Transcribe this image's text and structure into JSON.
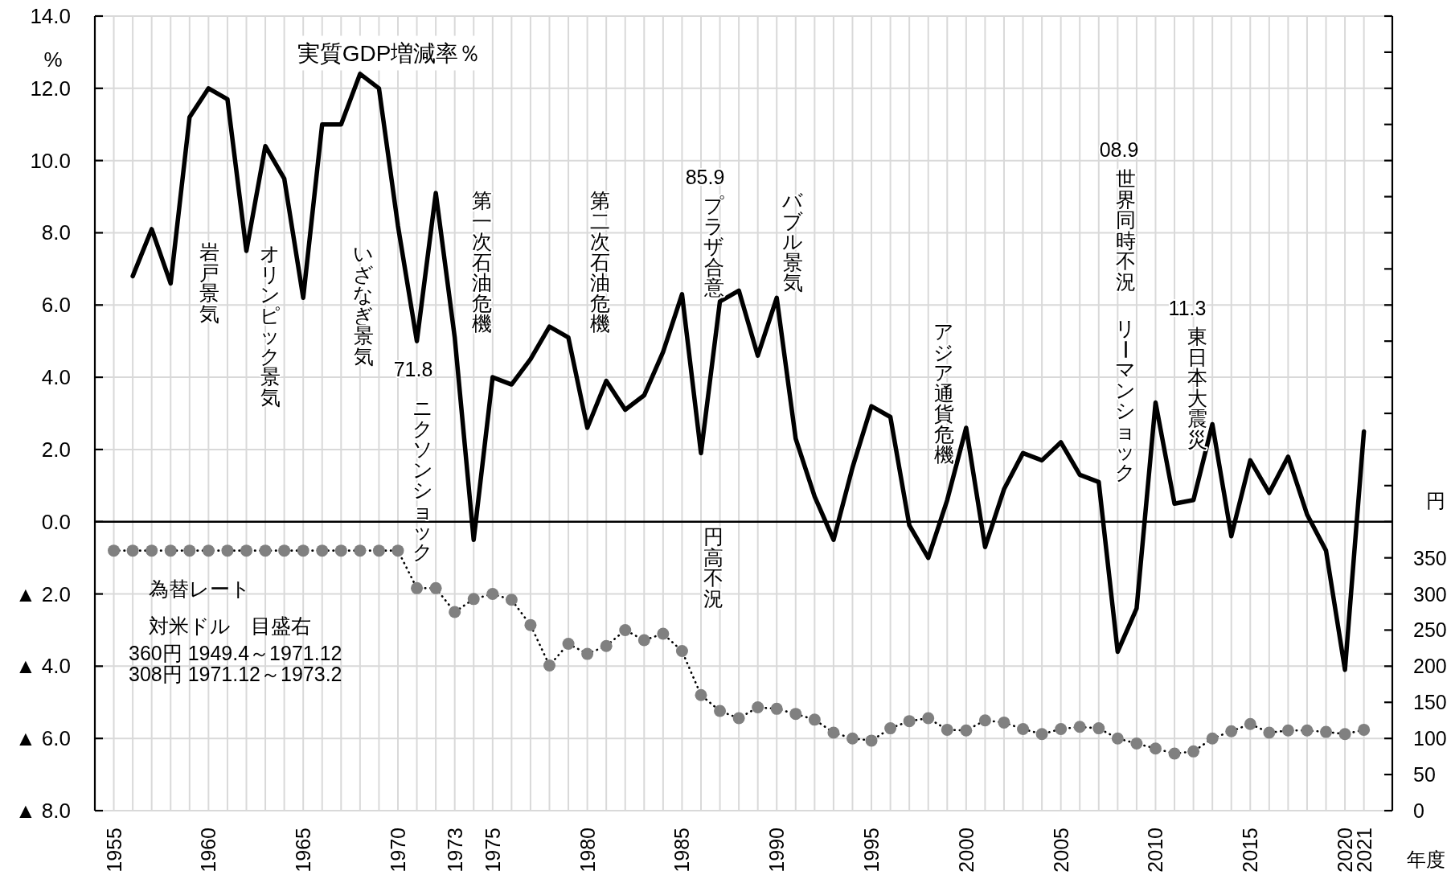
{
  "chart_data": {
    "type": "line",
    "title": "実質GDP増減率％",
    "xlabel": "年度",
    "ylabel": "%",
    "y2label": "円",
    "x": [
      1955,
      1956,
      1957,
      1958,
      1959,
      1960,
      1961,
      1962,
      1963,
      1964,
      1965,
      1966,
      1967,
      1968,
      1969,
      1970,
      1971,
      1972,
      1973,
      1974,
      1975,
      1976,
      1977,
      1978,
      1979,
      1980,
      1981,
      1982,
      1983,
      1984,
      1985,
      1986,
      1987,
      1988,
      1989,
      1990,
      1991,
      1992,
      1993,
      1994,
      1995,
      1996,
      1997,
      1998,
      1999,
      2000,
      2001,
      2002,
      2003,
      2004,
      2005,
      2006,
      2007,
      2008,
      2009,
      2010,
      2011,
      2012,
      2013,
      2014,
      2015,
      2016,
      2017,
      2018,
      2019,
      2020,
      2021
    ],
    "series": [
      {
        "color": "#000000",
        "line_style": "solid",
        "marker": "none",
        "values": [
          null,
          6.8,
          8.1,
          6.6,
          11.2,
          12.0,
          11.7,
          7.5,
          10.4,
          9.5,
          6.2,
          11.0,
          11.0,
          12.4,
          12.0,
          8.2,
          5.0,
          9.1,
          5.1,
          -0.5,
          4.0,
          3.8,
          4.5,
          5.4,
          5.1,
          2.6,
          3.9,
          3.1,
          3.5,
          4.7,
          6.3,
          1.9,
          6.1,
          6.4,
          4.6,
          6.2,
          2.3,
          0.7,
          -0.5,
          1.5,
          3.2,
          2.9,
          -0.1,
          -1.0,
          0.6,
          2.6,
          -0.7,
          0.9,
          1.9,
          1.7,
          2.2,
          1.3,
          1.1,
          -3.6,
          -2.4,
          3.3,
          0.5,
          0.6,
          2.7,
          -0.4,
          1.7,
          0.8,
          1.8,
          0.2,
          -0.8,
          -4.1,
          2.5
        ]
      },
      {
        "axis": "y2",
        "color": "#808080",
        "line_style": "dotted",
        "marker": "circle",
        "values": [
          360,
          360,
          360,
          360,
          360,
          360,
          360,
          360,
          360,
          360,
          360,
          360,
          360,
          360,
          360,
          360,
          308,
          308,
          275,
          293,
          300,
          292,
          257,
          201,
          231,
          217,
          228,
          250,
          236,
          245,
          221,
          160,
          138,
          128,
          143,
          141,
          134,
          126,
          108,
          100,
          97,
          114,
          124,
          128,
          112,
          111,
          125,
          122,
          113,
          106,
          113,
          116,
          114,
          100,
          93,
          86,
          79,
          82,
          100,
          110,
          120,
          108,
          111,
          111,
          109,
          106,
          112
        ]
      }
    ],
    "xlim": [
      1954,
      2022.5
    ],
    "xticks": [
      1955,
      {
        "value": 1956,
        "label": null
      },
      {
        "value": 1957,
        "label": null
      },
      {
        "value": 1958,
        "label": null
      },
      {
        "value": 1959,
        "label": null
      },
      1960,
      {
        "value": 1961,
        "label": null
      },
      {
        "value": 1962,
        "label": null
      },
      {
        "value": 1963,
        "label": null
      },
      {
        "value": 1964,
        "label": null
      },
      1965,
      {
        "value": 1966,
        "label": null
      },
      {
        "value": 1967,
        "label": null
      },
      {
        "value": 1968,
        "label": null
      },
      {
        "value": 1969,
        "label": null
      },
      1970,
      {
        "value": 1971,
        "label": null
      },
      {
        "value": 1972,
        "label": null
      },
      1973,
      {
        "value": 1974,
        "label": null
      },
      1975,
      {
        "value": 1976,
        "label": null
      },
      {
        "value": 1977,
        "label": null
      },
      {
        "value": 1978,
        "label": null
      },
      {
        "value": 1979,
        "label": null
      },
      1980,
      {
        "value": 1981,
        "label": null
      },
      {
        "value": 1982,
        "label": null
      },
      {
        "value": 1983,
        "label": null
      },
      {
        "value": 1984,
        "label": null
      },
      1985,
      {
        "value": 1986,
        "label": null
      },
      {
        "value": 1987,
        "label": null
      },
      {
        "value": 1988,
        "label": null
      },
      {
        "value": 1989,
        "label": null
      },
      1990,
      {
        "value": 1991,
        "label": null
      },
      {
        "value": 1992,
        "label": null
      },
      {
        "value": 1993,
        "label": null
      },
      {
        "value": 1994,
        "label": null
      },
      1995,
      {
        "value": 1996,
        "label": null
      },
      {
        "value": 1997,
        "label": null
      },
      {
        "value": 1998,
        "label": null
      },
      {
        "value": 1999,
        "label": null
      },
      2000,
      {
        "value": 2001,
        "label": null
      },
      {
        "value": 2002,
        "label": null
      },
      {
        "value": 2003,
        "label": null
      },
      {
        "value": 2004,
        "label": null
      },
      2005,
      {
        "value": 2006,
        "label": null
      },
      {
        "value": 2007,
        "label": null
      },
      {
        "value": 2008,
        "label": null
      },
      {
        "value": 2009,
        "label": null
      },
      2010,
      {
        "value": 2011,
        "label": null
      },
      {
        "value": 2012,
        "label": null
      },
      {
        "value": 2013,
        "label": null
      },
      {
        "value": 2014,
        "label": null
      },
      2015,
      {
        "value": 2016,
        "label": null
      },
      {
        "value": 2017,
        "label": null
      },
      {
        "value": 2018,
        "label": null
      },
      {
        "value": 2019,
        "label": null
      },
      2020,
      2021
    ],
    "ylim": [
      -8,
      14
    ],
    "yticks": [
      {
        "value": -8,
        "label": "▲ 8.0"
      },
      {
        "value": -6,
        "label": "▲ 6.0"
      },
      {
        "value": -4,
        "label": "▲ 4.0"
      },
      {
        "value": -2,
        "label": "▲ 2.0"
      },
      {
        "value": 0,
        "label": "0.0"
      },
      {
        "value": 2,
        "label": "2.0"
      },
      {
        "value": 4,
        "label": "4.0"
      },
      {
        "value": 6,
        "label": "6.0"
      },
      {
        "value": 8,
        "label": "8.0"
      },
      {
        "value": 10,
        "label": "10.0"
      },
      {
        "value": 12,
        "label": "12.0"
      },
      {
        "value": 14,
        "label": "14.0"
      }
    ],
    "y2lim": [
      0,
      1100
    ],
    "y2ticks": [
      0,
      50,
      100,
      150,
      200,
      250,
      300,
      350,
      {
        "value": 400,
        "label": null
      },
      {
        "value": 450,
        "label": null
      },
      {
        "value": 500,
        "label": null
      },
      {
        "value": 550,
        "label": null
      },
      {
        "value": 600,
        "label": null
      },
      {
        "value": 650,
        "label": null
      },
      {
        "value": 700,
        "label": null
      },
      {
        "value": 750,
        "label": null
      },
      {
        "value": 800,
        "label": null
      },
      {
        "value": 850,
        "label": null
      },
      {
        "value": 900,
        "label": null
      },
      {
        "value": 950,
        "label": null
      },
      {
        "value": 1000,
        "label": null
      },
      {
        "value": 1050,
        "label": null
      },
      {
        "value": 1100,
        "label": null
      }
    ],
    "grid": true,
    "ref_lines": [
      {
        "axis": "y",
        "value": 0,
        "color": "#000000"
      }
    ],
    "annotations": [
      "岩戸景気",
      "オリンピック景気",
      "いざなぎ景気",
      "71.8",
      "ニクソンショック",
      "第一次石油危機",
      "第二次石油危機",
      "85.9",
      "プラザ合意",
      "円高不況",
      "バブル景気",
      "アジア通貨危機",
      "08.9",
      "世界同時不況",
      "リーマンショック",
      "11.3",
      "東日本大震災",
      "為替レート",
      "対米ドル　目盛右",
      "360円 1949.4～1971.12",
      "308円 1971.12～1973.2"
    ]
  }
}
